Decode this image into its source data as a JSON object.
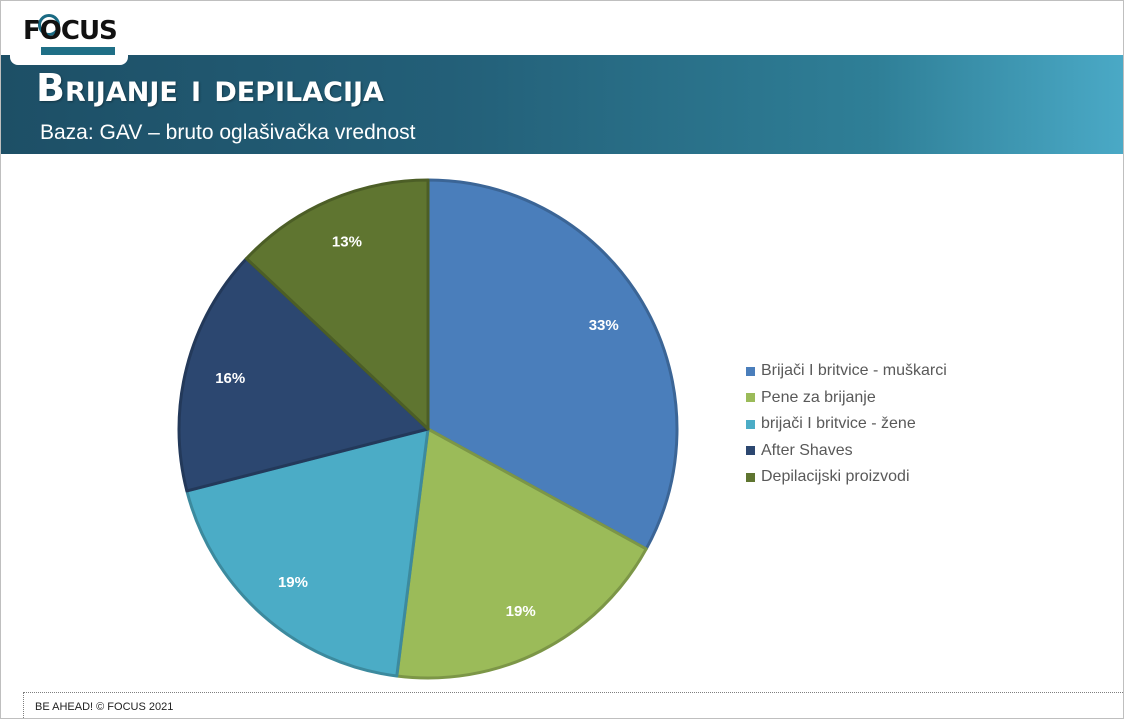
{
  "header": {
    "logo_text": "FOCUS",
    "title": "Brijanje i depilacija",
    "subtitle": "Baza: GAV – bruto oglašivačka vrednost"
  },
  "chart_data": {
    "type": "pie",
    "categories": [
      "Brijači I britvice - muškarci",
      "Pene za brijanje",
      "brijači I britvice - žene",
      "After Shaves",
      "Depilacijski proizvodi"
    ],
    "values": [
      33,
      19,
      19,
      16,
      13
    ],
    "data_labels": [
      "33%",
      "19%",
      "19%",
      "16%",
      "13%"
    ],
    "colors": [
      "#4a7ebb",
      "#9bbb59",
      "#4bacc6",
      "#2c4770",
      "#5f7530"
    ],
    "start_angle_deg": 0,
    "direction": "clockwise",
    "legend_position": "right"
  },
  "footer": {
    "text": "BE AHEAD! © FOCUS 2021"
  }
}
